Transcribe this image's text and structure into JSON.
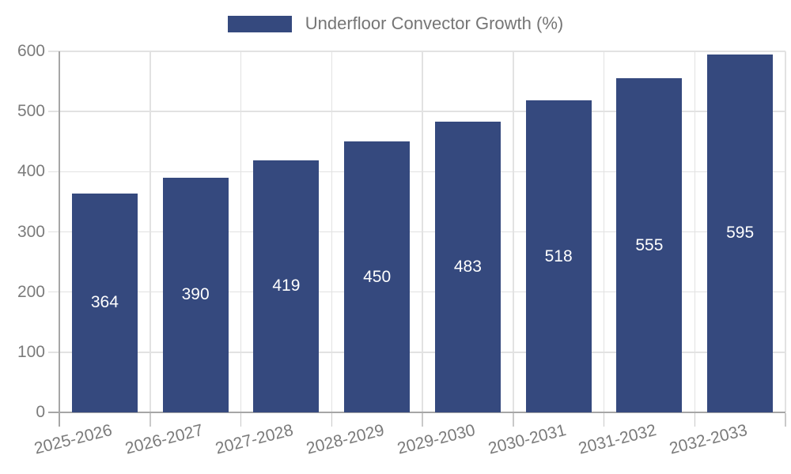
{
  "legend": {
    "label": "Underfloor Convector Growth (%)"
  },
  "colors": {
    "bar": "#35497e",
    "grid": "#e2e2e2",
    "axis": "#a6a6a6",
    "boundary_tick": "#c9c9c9",
    "tick_label": "#7b7b7b",
    "legend_text": "#757575",
    "value_label": "#ffffff",
    "background": "#ffffff"
  },
  "chart_data": {
    "type": "bar",
    "title": "Underfloor Convector Growth (%)",
    "categories": [
      "2025-2026",
      "2026-2027",
      "2027-2028",
      "2028-2029",
      "2029-2030",
      "2030-2031",
      "2031-2032",
      "2032-2033"
    ],
    "values": [
      364,
      390,
      419,
      450,
      483,
      518,
      555,
      595
    ],
    "series": [
      {
        "name": "Underfloor Convector Growth (%)",
        "values": [
          364,
          390,
          419,
          450,
          483,
          518,
          555,
          595
        ]
      }
    ],
    "xlabel": "",
    "ylabel": "",
    "ylim": [
      0,
      600
    ],
    "yticks": [
      0,
      100,
      200,
      300,
      400,
      500,
      600
    ],
    "grid": true,
    "legend_position": "top-center",
    "value_labels": "inside-middle",
    "x_label_rotation_deg": -14
  }
}
